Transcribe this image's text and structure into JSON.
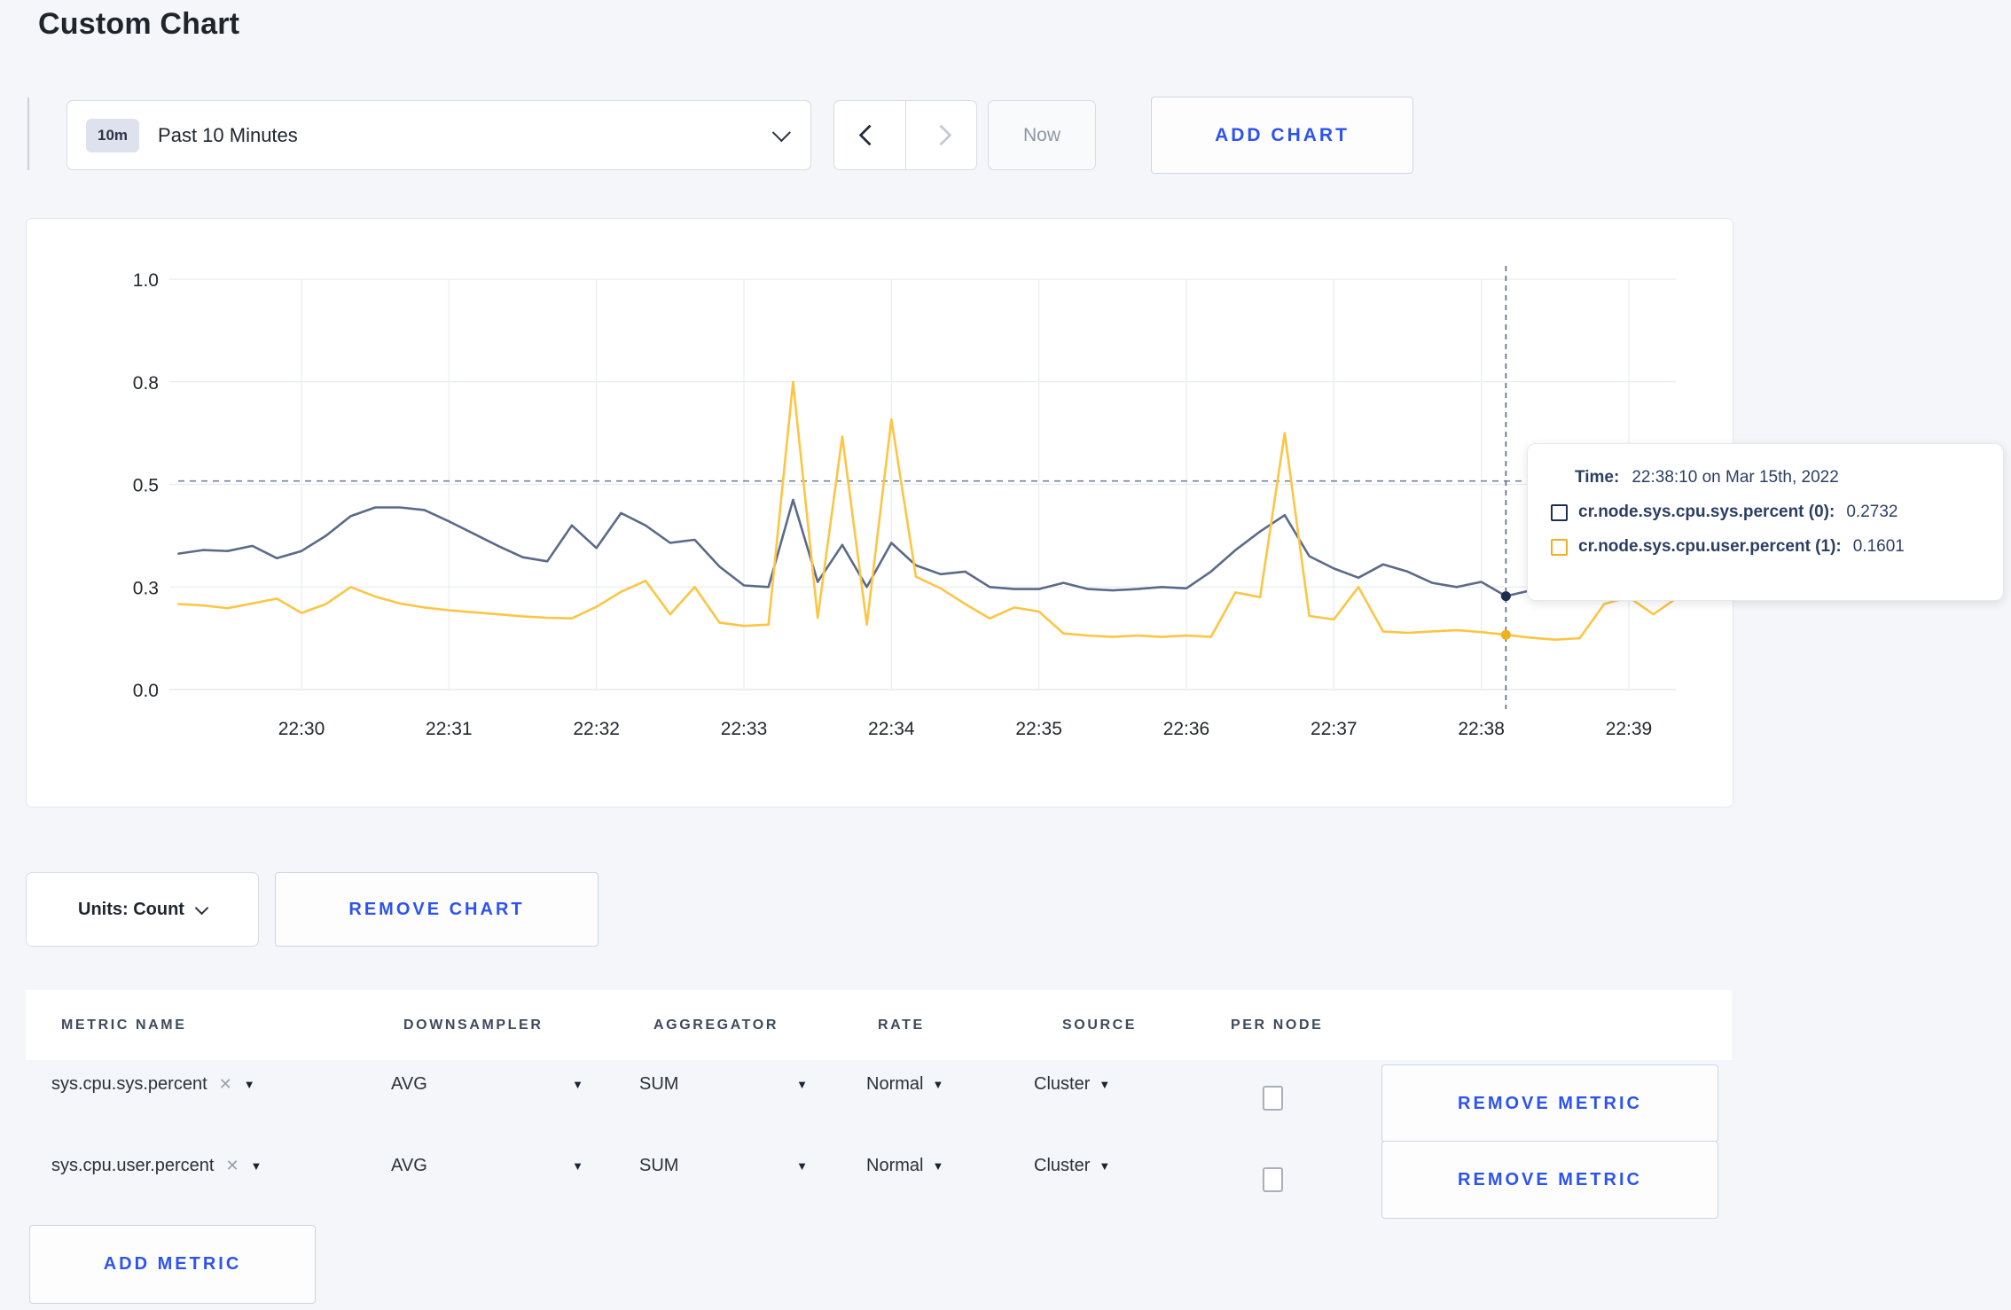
{
  "page": {
    "title": "Custom Chart",
    "background": "#f4f6f9",
    "accent_blue": "#2d53ef"
  },
  "toolbar": {
    "time_badge": "10m",
    "time_label": "Past 10 Minutes",
    "now_label": "Now",
    "add_chart_label": "ADD CHART"
  },
  "chart_data": {
    "type": "line",
    "title": "",
    "xlabel": "",
    "ylabel": "",
    "x_tick_labels": [
      "22:30",
      "22:31",
      "22:32",
      "22:33",
      "22:34",
      "22:35",
      "22:36",
      "22:37",
      "22:38",
      "22:39"
    ],
    "y_tick_labels": [
      "0.0",
      "0.3",
      "0.5",
      "0.8",
      "1.0"
    ],
    "y_tick_values": [
      0,
      0.3,
      0.5,
      0.8,
      1.0
    ],
    "grid": true,
    "legend_position": "tooltip",
    "start_time": "22:29:10",
    "interval_sec": 10,
    "seconds_before_first_tick": 50,
    "guide_value": 0.51,
    "hover": {
      "time": "22:38:10",
      "index": 54
    },
    "series": [
      {
        "name": "cr.node.sys.cpu.sys.percent",
        "legend_suffix": "(0)",
        "color": "#5b6a89",
        "swatch_color": "#1e2e52",
        "hover_value": "0.2732",
        "values": [
          0.365,
          0.372,
          0.37,
          0.38,
          0.356,
          0.37,
          0.4,
          0.438,
          0.455,
          0.455,
          0.45,
          0.428,
          0.404,
          0.38,
          0.358,
          0.35,
          0.42,
          0.376,
          0.444,
          0.42,
          0.386,
          0.392,
          0.34,
          0.303,
          0.3,
          0.47,
          0.31,
          0.382,
          0.3,
          0.386,
          0.342,
          0.325,
          0.33,
          0.3,
          0.294,
          0.294,
          0.308,
          0.294,
          0.29,
          0.294,
          0.3,
          0.296,
          0.33,
          0.372,
          0.408,
          0.44,
          0.36,
          0.336,
          0.318,
          0.344,
          0.33,
          0.308,
          0.3,
          0.31,
          0.2732,
          0.29,
          0.298,
          0.31,
          0.304,
          0.296,
          0.3,
          0.31
        ]
      },
      {
        "name": "cr.node.sys.cpu.user.percent",
        "legend_suffix": "(1)",
        "color": "#fdc543",
        "swatch_color": "#f1b01e",
        "hover_value": "0.1601",
        "values": [
          0.25,
          0.246,
          0.238,
          0.252,
          0.266,
          0.224,
          0.25,
          0.3,
          0.272,
          0.252,
          0.24,
          0.232,
          0.226,
          0.22,
          0.214,
          0.21,
          0.208,
          0.242,
          0.286,
          0.312,
          0.22,
          0.3,
          0.196,
          0.186,
          0.19,
          0.8,
          0.21,
          0.64,
          0.19,
          0.69,
          0.32,
          0.296,
          0.25,
          0.208,
          0.24,
          0.228,
          0.164,
          0.158,
          0.154,
          0.158,
          0.154,
          0.158,
          0.154,
          0.284,
          0.27,
          0.65,
          0.215,
          0.205,
          0.3,
          0.17,
          0.166,
          0.17,
          0.174,
          0.168,
          0.1601,
          0.152,
          0.146,
          0.15,
          0.25,
          0.27,
          0.22,
          0.27
        ]
      }
    ]
  },
  "tooltip": {
    "time_label": "Time:",
    "time_value": "22:38:10 on Mar 15th, 2022"
  },
  "units_bar": {
    "units_label": "Units: Count",
    "remove_chart_label": "REMOVE CHART"
  },
  "metrics_table": {
    "headers": [
      "METRIC NAME",
      "DOWNSAMPLER",
      "AGGREGATOR",
      "RATE",
      "SOURCE",
      "PER NODE"
    ],
    "remove_metric_label": "REMOVE METRIC",
    "add_metric_label": "ADD METRIC",
    "remove_icon": "✕",
    "dropdown_arrow": "▼",
    "rows": [
      {
        "metric": "sys.cpu.sys.percent",
        "downsampler": "AVG",
        "aggregator": "SUM",
        "rate": "Normal",
        "source": "Cluster",
        "per_node_checked": false
      },
      {
        "metric": "sys.cpu.user.percent",
        "downsampler": "AVG",
        "aggregator": "SUM",
        "rate": "Normal",
        "source": "Cluster",
        "per_node_checked": false
      }
    ]
  }
}
